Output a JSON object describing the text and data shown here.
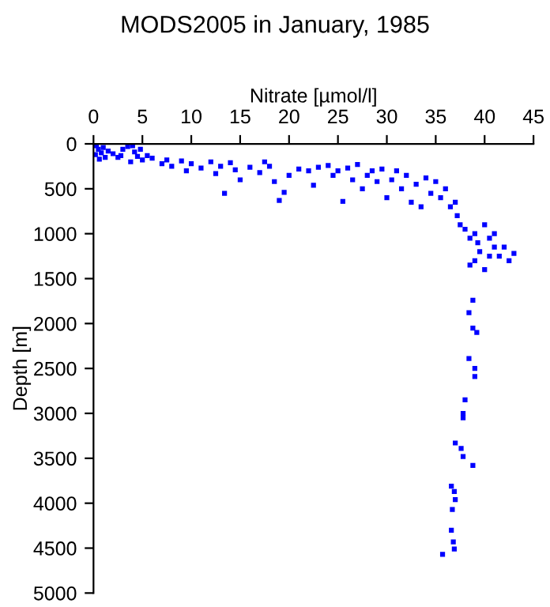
{
  "chart_data": {
    "type": "scatter",
    "title": "MODS2005 in January, 1985",
    "xlabel": "Nitrate [µmol/l]",
    "ylabel": "Depth [m]",
    "xlim": [
      0,
      45
    ],
    "xticks": [
      0,
      5,
      10,
      15,
      20,
      25,
      30,
      35,
      40,
      45
    ],
    "ylim": [
      5000,
      0
    ],
    "yticks": [
      0,
      500,
      1000,
      1500,
      2000,
      2500,
      3000,
      3500,
      4000,
      4500,
      5000
    ],
    "grid": false,
    "marker": "square",
    "legend": false,
    "series": [
      {
        "color": "#0000ff",
        "x": [
          0.3,
          0.5,
          0.8,
          1,
          1.5,
          0.2,
          2,
          2.5,
          3,
          3.5,
          4,
          4.2,
          4.5,
          5,
          3.8,
          1.2,
          0.6,
          2.8,
          4.8,
          5.5,
          6,
          7,
          7.5,
          8,
          9,
          9.5,
          10,
          11,
          12,
          12.5,
          13,
          13.4,
          14,
          14.5,
          15,
          16,
          17,
          17.5,
          18,
          18.5,
          19,
          19.5,
          20,
          21,
          22,
          22.5,
          23,
          24,
          24.5,
          25,
          25.5,
          26,
          26.5,
          27,
          27.5,
          28,
          28.5,
          29,
          29.5,
          30,
          30.5,
          31,
          31.5,
          32,
          32.5,
          33,
          33.5,
          34,
          34.5,
          35,
          35.5,
          36,
          36.5,
          37,
          37.2,
          37.5,
          38,
          38.5,
          39,
          39.3,
          39.5,
          40,
          40.5,
          41,
          41.5,
          42,
          42.5,
          43,
          39,
          40,
          38.5,
          41,
          40.5,
          38.8,
          38.4,
          39.2,
          38.8,
          38.4,
          39,
          39,
          38,
          37.8,
          37.8,
          37,
          37.6,
          37.8,
          38.8,
          36.6,
          36.9,
          37.0,
          36.7,
          36.6,
          36.8,
          36.9,
          35.7
        ],
        "values": [
          20,
          60,
          100,
          40,
          80,
          120,
          110,
          150,
          60,
          30,
          20,
          90,
          140,
          180,
          200,
          150,
          170,
          130,
          60,
          130,
          160,
          220,
          180,
          250,
          190,
          300,
          220,
          270,
          200,
          330,
          250,
          550,
          210,
          290,
          400,
          260,
          320,
          200,
          250,
          420,
          630,
          540,
          350,
          280,
          300,
          460,
          260,
          240,
          350,
          300,
          640,
          270,
          400,
          230,
          500,
          350,
          300,
          420,
          280,
          600,
          400,
          300,
          500,
          350,
          650,
          450,
          700,
          380,
          550,
          420,
          600,
          500,
          700,
          650,
          800,
          900,
          950,
          1050,
          1000,
          1100,
          1200,
          900,
          1050,
          1150,
          1250,
          1150,
          1300,
          1220,
          1300,
          1400,
          1350,
          1000,
          1250,
          1740,
          1880,
          2100,
          2050,
          2390,
          2500,
          2590,
          2850,
          3000,
          3050,
          3330,
          3390,
          3480,
          3580,
          3810,
          3870,
          3960,
          4070,
          4300,
          4430,
          4510,
          4570
        ]
      }
    ]
  }
}
